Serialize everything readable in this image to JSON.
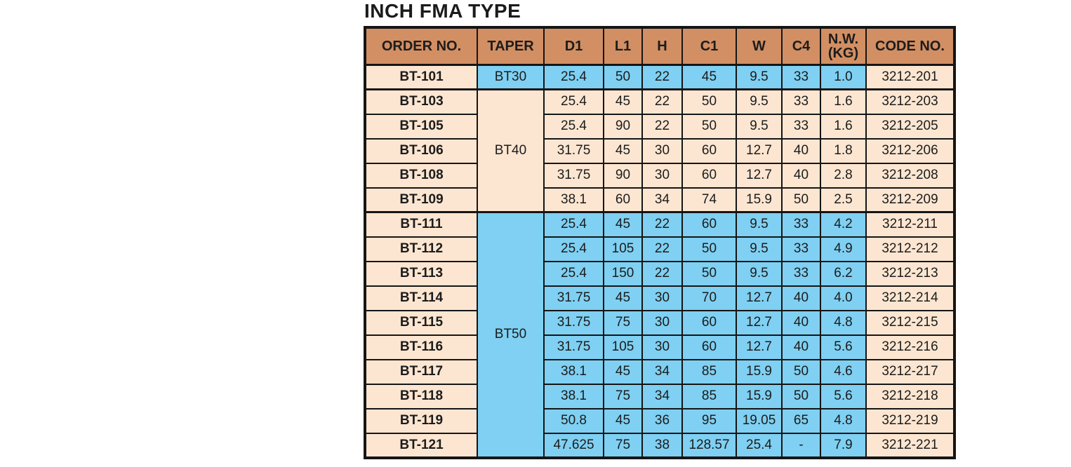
{
  "title": "INCH FMA TYPE",
  "colors": {
    "header_bg": "#d28f63",
    "peach": "#fce6d1",
    "blue": "#7fd0f2",
    "border": "#151515"
  },
  "table": {
    "columns": [
      "ORDER NO.",
      "TAPER",
      "D1",
      "L1",
      "H",
      "C1",
      "W",
      "C4",
      "N.W.\n(KG)",
      "CODE NO."
    ],
    "groups": [
      {
        "taper": "BT30",
        "color": "blue",
        "rows": [
          [
            "BT-101",
            "25.4",
            "50",
            "22",
            "45",
            "9.5",
            "33",
            "1.0",
            "3212-201"
          ]
        ]
      },
      {
        "taper": "BT40",
        "color": "peach",
        "rows": [
          [
            "BT-103",
            "25.4",
            "45",
            "22",
            "50",
            "9.5",
            "33",
            "1.6",
            "3212-203"
          ],
          [
            "BT-105",
            "25.4",
            "90",
            "22",
            "50",
            "9.5",
            "33",
            "1.6",
            "3212-205"
          ],
          [
            "BT-106",
            "31.75",
            "45",
            "30",
            "60",
            "12.7",
            "40",
            "1.8",
            "3212-206"
          ],
          [
            "BT-108",
            "31.75",
            "90",
            "30",
            "60",
            "12.7",
            "40",
            "2.8",
            "3212-208"
          ],
          [
            "BT-109",
            "38.1",
            "60",
            "34",
            "74",
            "15.9",
            "50",
            "2.5",
            "3212-209"
          ]
        ]
      },
      {
        "taper": "BT50",
        "color": "blue",
        "rows": [
          [
            "BT-111",
            "25.4",
            "45",
            "22",
            "60",
            "9.5",
            "33",
            "4.2",
            "3212-211"
          ],
          [
            "BT-112",
            "25.4",
            "105",
            "22",
            "50",
            "9.5",
            "33",
            "4.9",
            "3212-212"
          ],
          [
            "BT-113",
            "25.4",
            "150",
            "22",
            "50",
            "9.5",
            "33",
            "6.2",
            "3212-213"
          ],
          [
            "BT-114",
            "31.75",
            "45",
            "30",
            "70",
            "12.7",
            "40",
            "4.0",
            "3212-214"
          ],
          [
            "BT-115",
            "31.75",
            "75",
            "30",
            "60",
            "12.7",
            "40",
            "4.8",
            "3212-215"
          ],
          [
            "BT-116",
            "31.75",
            "105",
            "30",
            "60",
            "12.7",
            "40",
            "5.6",
            "3212-216"
          ],
          [
            "BT-117",
            "38.1",
            "45",
            "34",
            "85",
            "15.9",
            "50",
            "4.6",
            "3212-217"
          ],
          [
            "BT-118",
            "38.1",
            "75",
            "34",
            "85",
            "15.9",
            "50",
            "5.6",
            "3212-218"
          ],
          [
            "BT-119",
            "50.8",
            "45",
            "36",
            "95",
            "19.05",
            "65",
            "4.8",
            "3212-219"
          ],
          [
            "BT-121",
            "47.625",
            "75",
            "38",
            "128.57",
            "25.4",
            "-",
            "7.9",
            "3212-221"
          ]
        ]
      }
    ]
  }
}
